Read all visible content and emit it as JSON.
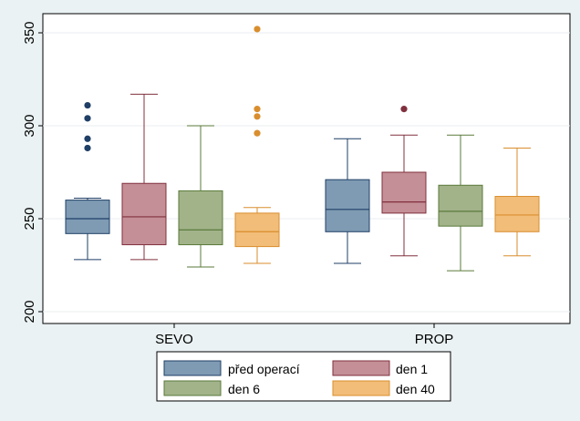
{
  "chart_data": {
    "type": "boxplot",
    "title": "",
    "xlabel": "",
    "ylabel": "",
    "ylim": [
      200,
      360
    ],
    "yticks": [
      200,
      250,
      300,
      350
    ],
    "categories": [
      "SEVO",
      "PROP"
    ],
    "series": [
      {
        "name": "před operací",
        "fill": "#7f9bb4",
        "stroke": "#1f3f66",
        "boxes": [
          {
            "category": "SEVO",
            "min": 228,
            "q1": 242,
            "median": 250,
            "q3": 260,
            "max": 261,
            "outliers": [
              288,
              293,
              304,
              311
            ]
          },
          {
            "category": "PROP",
            "min": 226,
            "q1": 243,
            "median": 255,
            "q3": 271,
            "max": 293,
            "outliers": []
          }
        ]
      },
      {
        "name": "den 1",
        "fill": "#c48f97",
        "stroke": "#80303e",
        "boxes": [
          {
            "category": "SEVO",
            "min": 228,
            "q1": 236,
            "median": 251,
            "q3": 269,
            "max": 317,
            "outliers": []
          },
          {
            "category": "PROP",
            "min": 230,
            "q1": 253,
            "median": 259,
            "q3": 275,
            "max": 295,
            "outliers": [
              309
            ]
          }
        ]
      },
      {
        "name": "den 6",
        "fill": "#a2b38a",
        "stroke": "#5a7a3a",
        "boxes": [
          {
            "category": "SEVO",
            "min": 224,
            "q1": 236,
            "median": 244,
            "q3": 265,
            "max": 300,
            "outliers": []
          },
          {
            "category": "PROP",
            "min": 222,
            "q1": 246,
            "median": 254,
            "q3": 268,
            "max": 295,
            "outliers": []
          }
        ]
      },
      {
        "name": "den 40",
        "fill": "#f2bd78",
        "stroke": "#d98e2e",
        "boxes": [
          {
            "category": "SEVO",
            "min": 226,
            "q1": 235,
            "median": 243,
            "q3": 253,
            "max": 256,
            "outliers": [
              296,
              305,
              309,
              352
            ]
          },
          {
            "category": "PROP",
            "min": 230,
            "q1": 243,
            "median": 252,
            "q3": 262,
            "max": 288,
            "outliers": []
          }
        ]
      }
    ],
    "legend": {
      "position": "bottom",
      "columns": 2
    }
  }
}
